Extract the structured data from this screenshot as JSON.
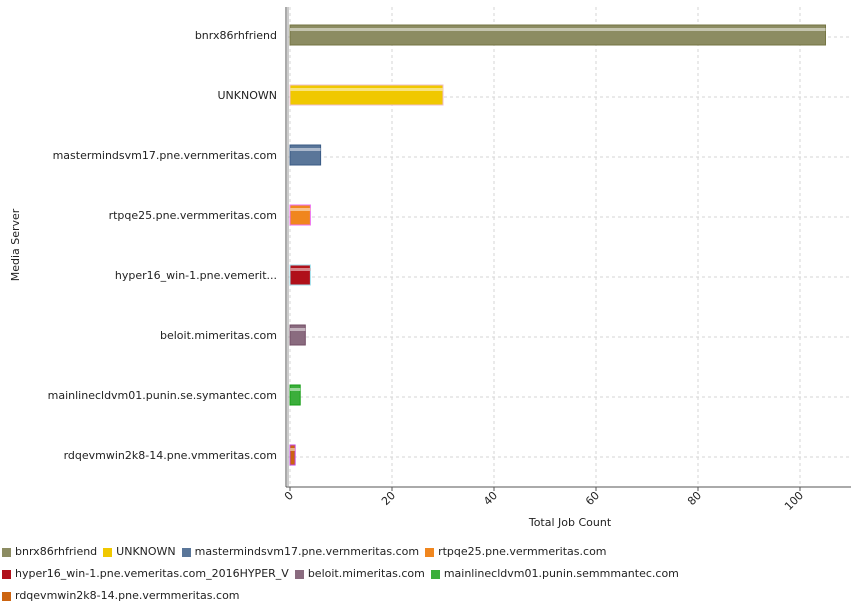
{
  "chart_data": {
    "type": "bar",
    "orientation": "horizontal",
    "xlabel": "Total Job Count",
    "ylabel": "Media Server",
    "xlim": [
      0,
      110
    ],
    "xticks": [
      0,
      20,
      40,
      60,
      80,
      100
    ],
    "grid": true,
    "legend_position": "bottom",
    "categories": [
      "bnrx86rhfriend",
      "UNKNOWN",
      "mastermindsvm17.pne.vernmeritas.com",
      "rtpqe25.pne.vermmeritas.com",
      "hyper16_win-1.pne.vemerit...",
      "beloit.mimeritas.com",
      "mainlinecldvm01.punin.se.symantec.com",
      "rdqevmwin2k8-14.pne.vmmeritas.com"
    ],
    "values": [
      105,
      30,
      6,
      4,
      4,
      3,
      2,
      1
    ],
    "colors": [
      "#8c8c62",
      "#f0c800",
      "#5a7699",
      "#f0861e",
      "#b0101a",
      "#8a6b7f",
      "#3cae3c",
      "#cc6410"
    ],
    "legend_labels": [
      "bnrx86rhfriend",
      "UNKNOWN",
      "mastermindsvm17.pne.vernmeritas.com",
      "rtpqe25.pne.vermmeritas.com",
      "hyper16_win-1.pne.vemeritas.com_2016HYPER_V",
      "beloit.mimeritas.com",
      "mainlinecldvm01.punin.semmmantec.com",
      "rdqevmwin2k8-14.pne.vermmeritas.com"
    ]
  }
}
